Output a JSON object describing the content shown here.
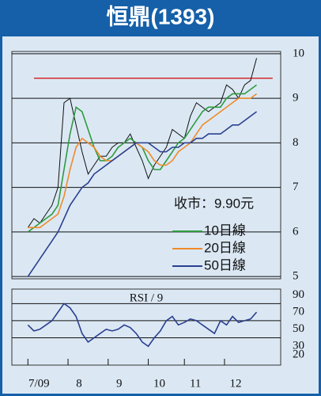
{
  "chart_data": [
    {
      "type": "line",
      "title": "恒鼎(1393)",
      "annotation": "收市：9.90元",
      "xlim": [
        -8,
        126
      ],
      "ylim": [
        4.95,
        10.05
      ],
      "yticks": [
        5,
        6,
        7,
        8,
        9,
        10
      ],
      "grid": true,
      "x": [
        0,
        3,
        6,
        9,
        12,
        15,
        18,
        21,
        24,
        27,
        30,
        33,
        36,
        39,
        42,
        45,
        48,
        51,
        54,
        57,
        60,
        63,
        66,
        69,
        72,
        75,
        78,
        81,
        84,
        87,
        90,
        93,
        96,
        99,
        102,
        105,
        108,
        111,
        114
      ],
      "hline": {
        "value": 9.45,
        "x": [
          3,
          122
        ],
        "color": "#d42a2a"
      },
      "series": [
        {
          "color": "#111111",
          "values": [
            6.1,
            6.3,
            6.2,
            6.4,
            6.6,
            7.0,
            8.9,
            9.0,
            8.4,
            7.8,
            7.3,
            7.5,
            7.7,
            7.7,
            7.9,
            8.0,
            8.0,
            8.2,
            7.9,
            7.6,
            7.2,
            7.5,
            7.7,
            7.9,
            8.3,
            8.2,
            8.1,
            8.6,
            8.9,
            8.8,
            8.7,
            8.8,
            8.9,
            9.3,
            9.2,
            9.0,
            9.3,
            9.4,
            9.9
          ]
        },
        {
          "name": "10日線",
          "color": "#2e9b3e",
          "values": [
            6.0,
            6.1,
            6.2,
            6.3,
            6.4,
            6.6,
            7.4,
            8.2,
            8.8,
            8.7,
            8.3,
            7.9,
            7.6,
            7.6,
            7.7,
            7.9,
            8.0,
            8.1,
            8.0,
            7.9,
            7.6,
            7.4,
            7.4,
            7.6,
            7.8,
            8.0,
            8.1,
            8.3,
            8.5,
            8.7,
            8.8,
            8.8,
            8.8,
            9.0,
            9.1,
            9.1,
            9.1,
            9.2,
            9.3
          ]
        },
        {
          "name": "20日線",
          "color": "#f08a2a",
          "values": [
            6.1,
            6.1,
            6.1,
            6.2,
            6.3,
            6.4,
            6.8,
            7.4,
            7.9,
            8.1,
            8.0,
            7.9,
            7.7,
            7.6,
            7.6,
            7.7,
            7.8,
            7.9,
            8.0,
            7.9,
            7.8,
            7.6,
            7.5,
            7.5,
            7.6,
            7.8,
            7.9,
            8.0,
            8.2,
            8.4,
            8.5,
            8.6,
            8.7,
            8.8,
            8.9,
            9.0,
            9.0,
            9.0,
            9.1
          ]
        },
        {
          "name": "50日線",
          "color": "#2a3f8f",
          "values": [
            5.0,
            5.2,
            5.4,
            5.6,
            5.8,
            6.0,
            6.3,
            6.6,
            6.8,
            7.0,
            7.1,
            7.3,
            7.4,
            7.5,
            7.6,
            7.7,
            7.8,
            7.9,
            8.0,
            8.0,
            8.0,
            7.9,
            7.8,
            7.8,
            7.9,
            7.9,
            8.0,
            8.0,
            8.1,
            8.1,
            8.2,
            8.2,
            8.2,
            8.3,
            8.4,
            8.4,
            8.5,
            8.6,
            8.7
          ]
        }
      ]
    },
    {
      "type": "line",
      "title": "RSI / 9",
      "xlim": [
        -8,
        126
      ],
      "ylim": [
        8,
        97
      ],
      "yticks": [
        20,
        30,
        50,
        70,
        90
      ],
      "hlines": [
        80,
        60,
        40
      ],
      "xticks": [
        {
          "value": 0,
          "label": "7/09"
        },
        {
          "value": 20,
          "label": "8"
        },
        {
          "value": 40,
          "label": "9"
        },
        {
          "value": 60,
          "label": "10"
        },
        {
          "value": 78,
          "label": "11"
        },
        {
          "value": 98,
          "label": "12"
        }
      ],
      "series": [
        {
          "color": "#2a3f8f",
          "values": [
            55,
            48,
            50,
            55,
            60,
            70,
            80,
            75,
            65,
            45,
            35,
            40,
            45,
            50,
            48,
            50,
            55,
            52,
            45,
            35,
            30,
            40,
            48,
            60,
            65,
            55,
            58,
            62,
            60,
            55,
            50,
            45,
            60,
            55,
            65,
            58,
            60,
            62,
            70
          ]
        }
      ]
    }
  ]
}
